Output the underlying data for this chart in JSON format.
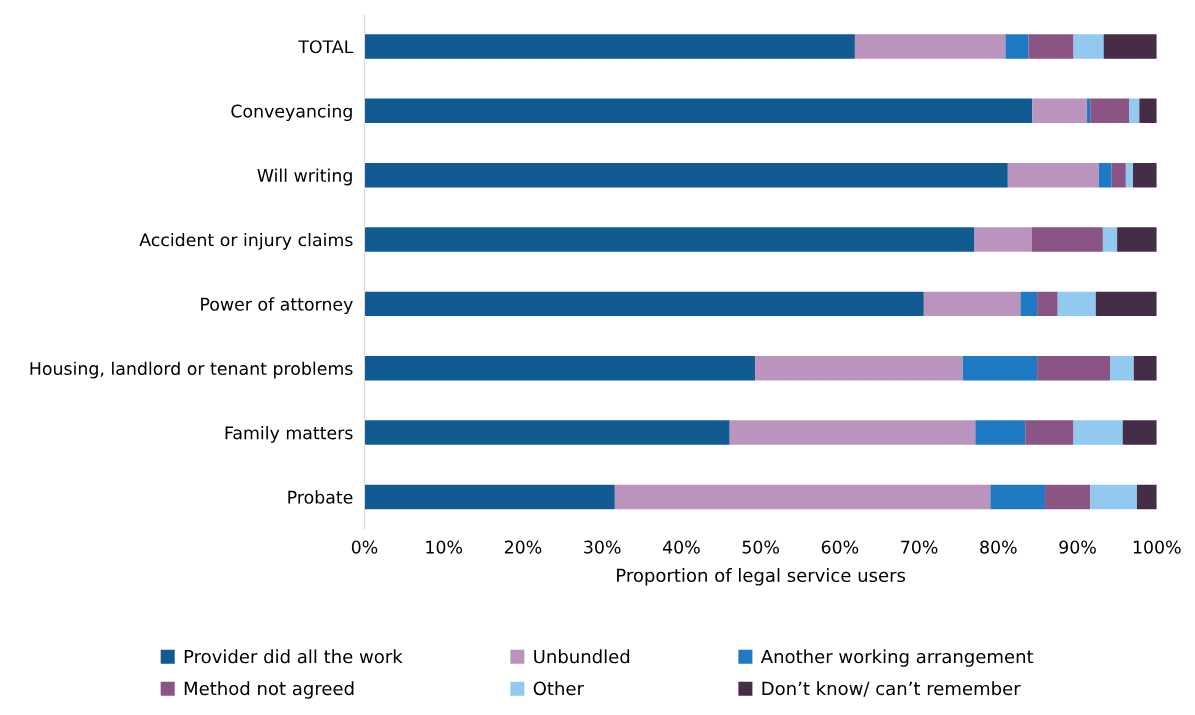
{
  "chart_data": {
    "type": "bar",
    "orientation": "horizontal",
    "stacked": true,
    "xlabel": "Proportion of legal service users",
    "categories": [
      "TOTAL",
      "Conveyancing",
      "Will writing",
      "Accident or injury claims",
      "Power of attorney",
      "Housing, landlord or tenant problems",
      "Family matters",
      "Probate"
    ],
    "series": [
      {
        "name": "Provider did all the work",
        "color": "#125b92",
        "values": [
          61.9,
          84.3,
          81.2,
          77.0,
          70.6,
          49.3,
          46.1,
          31.6
        ]
      },
      {
        "name": "Unbundled",
        "color": "#bb94bd",
        "values": [
          19.0,
          6.9,
          11.5,
          7.2,
          12.2,
          26.2,
          31.0,
          47.4
        ]
      },
      {
        "name": "Another working arrangement",
        "color": "#1f7ac4",
        "values": [
          2.9,
          0.4,
          1.6,
          0,
          2.1,
          9.4,
          6.3,
          6.9
        ]
      },
      {
        "name": "Method not agreed",
        "color": "#8a5585",
        "values": [
          5.7,
          4.9,
          1.8,
          9.0,
          2.6,
          9.2,
          6.1,
          5.7
        ]
      },
      {
        "name": "Other",
        "color": "#92c9ef",
        "values": [
          3.8,
          1.3,
          0.9,
          1.8,
          4.8,
          3.0,
          6.2,
          5.9
        ]
      },
      {
        "name": "Don’t know/ can’t remember",
        "color": "#452d47",
        "values": [
          6.7,
          2.2,
          3.0,
          5.0,
          7.7,
          2.9,
          4.3,
          2.5
        ]
      }
    ],
    "xlim": [
      0,
      100
    ],
    "xticks": [
      {
        "value": 0,
        "label": "0%"
      },
      {
        "value": 10,
        "label": "10%"
      },
      {
        "value": 20,
        "label": "20%"
      },
      {
        "value": 30,
        "label": "30%"
      },
      {
        "value": 40,
        "label": "40%"
      },
      {
        "value": 50,
        "label": "50%"
      },
      {
        "value": 60,
        "label": "60%"
      },
      {
        "value": 70,
        "label": "70%"
      },
      {
        "value": 80,
        "label": "80%"
      },
      {
        "value": 90,
        "label": "90%"
      },
      {
        "value": 100,
        "label": "100%"
      }
    ],
    "grid": false,
    "legend": "bottom"
  }
}
